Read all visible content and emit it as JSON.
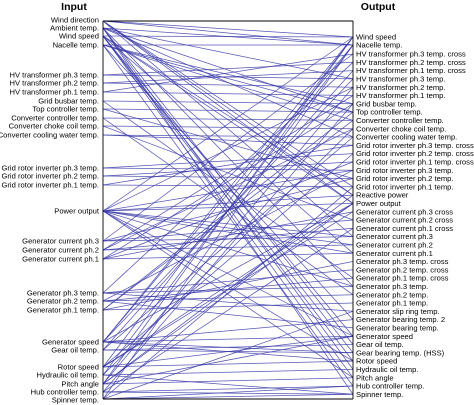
{
  "headers": {
    "input": "Input",
    "output": "Output"
  },
  "colors": {
    "line": "#3a3aa8",
    "axis": "#000000",
    "text": "#000000"
  },
  "inputs": [
    "Wind direction",
    "Ambient temp.",
    "Wind speed",
    "Nacelle temp.",
    "HV transformer ph.3 temp.",
    "HV transformer ph.2 temp.",
    "HV transformer ph.1 temp.",
    "Grid busbar temp.",
    "Top controller temp.",
    "Converter controller temp.",
    "Converter choke coil temp.",
    "Converter cooling water temp.",
    "Grid rotor inverter ph.3 temp.",
    "Grid rotor inverter ph.2 temp.",
    "Grid rotor inverter ph.1 temp.",
    "Power output",
    "Generator current ph.3",
    "Generator current ph.2",
    "Generator current ph.1",
    "Generator ph.3 temp.",
    "Generator ph.2 temp.",
    "Generator ph.1 temp.",
    "Generator speed",
    "Gear oil temp.",
    "Rotor speed",
    "Hydraulic oil temp.",
    "Pitch angle",
    "Hub controller temp.",
    "Spinner temp."
  ],
  "outputs": [
    "Wind speed",
    "Nacelle temp.",
    "HV transformer ph.3 temp. cross",
    "HV transformer ph.2 temp. cross",
    "HV transformer ph.1 temp. cross",
    "HV transformer ph.3 temp.",
    "HV transformer ph.2 temp.",
    "HV transformer ph.1 temp.",
    "Grid busbar temp.",
    "Top controller temp.",
    "Converter controller temp.",
    "Converter choke coil temp.",
    "Converter cooling water temp.",
    "Grid rotor inverter ph.3 temp. cross",
    "Grid rotor inverter ph.2 temp. cross",
    "Grid rotor inverter ph.1 temp. cross",
    "Grid rotor inverter ph.3 temp.",
    "Grid rotor inverter ph.2 temp.",
    "Grid rotor inverter ph.1 temp.",
    "Reactive power",
    "Power output",
    "Generator current ph.3 cross",
    "Generator current ph.2 cross",
    "Generator current ph.1 cross",
    "Generator current ph.3",
    "Generator current ph.2",
    "Generator current ph.1",
    "Generator ph.3 temp. cross",
    "Generator ph.2 temp. cross",
    "Generator ph.1 temp. cross",
    "Generator ph.3 temp.",
    "Generator ph.2 temp.",
    "Generator ph.1 temp.",
    "Generator slip ring temp.",
    "Generator bearing temp. 2",
    "Generator bearing temp.",
    "Generator speed",
    "Gear oil temp.",
    "Gear bearing temp. (HSS)",
    "Rotor speed",
    "Hydraulic oil temp.",
    "Pitch angle",
    "Hub controller temp.",
    "Spinner temp."
  ],
  "links": [
    [
      "Wind direction",
      "Wind speed"
    ],
    [
      "Wind direction",
      "Nacelle temp."
    ],
    [
      "Wind direction",
      "Reactive power"
    ],
    [
      "Wind direction",
      "Power output"
    ],
    [
      "Wind direction",
      "Grid rotor inverter ph.1 temp."
    ],
    [
      "Wind direction",
      "Generator current ph.3"
    ],
    [
      "Ambient temp.",
      "Nacelle temp."
    ],
    [
      "Ambient temp.",
      "HV transformer ph.3 temp."
    ],
    [
      "Ambient temp.",
      "Top controller temp."
    ],
    [
      "Ambient temp.",
      "Converter cooling water temp."
    ],
    [
      "Ambient temp.",
      "Generator ph.3 temp."
    ],
    [
      "Ambient temp.",
      "Gear oil temp."
    ],
    [
      "Ambient temp.",
      "Hydraulic oil temp."
    ],
    [
      "Ambient temp.",
      "Spinner temp."
    ],
    [
      "Wind speed",
      "Wind speed"
    ],
    [
      "Wind speed",
      "Power output"
    ],
    [
      "Wind speed",
      "Reactive power"
    ],
    [
      "Wind speed",
      "Generator speed"
    ],
    [
      "Wind speed",
      "Rotor speed"
    ],
    [
      "Wind speed",
      "Pitch angle"
    ],
    [
      "Wind speed",
      "Generator current ph.1"
    ],
    [
      "Wind speed",
      "Gear bearing temp. (HSS)"
    ],
    [
      "Nacelle temp.",
      "Nacelle temp."
    ],
    [
      "Nacelle temp.",
      "Grid busbar temp."
    ],
    [
      "Nacelle temp.",
      "Top controller temp."
    ],
    [
      "Nacelle temp.",
      "Converter controller temp."
    ],
    [
      "Nacelle temp.",
      "Hub controller temp."
    ],
    [
      "Nacelle temp.",
      "Generator bearing temp. 2"
    ],
    [
      "HV transformer ph.3 temp.",
      "HV transformer ph.3 temp."
    ],
    [
      "HV transformer ph.3 temp.",
      "HV transformer ph.2 temp. cross"
    ],
    [
      "HV transformer ph.2 temp.",
      "HV transformer ph.2 temp."
    ],
    [
      "HV transformer ph.2 temp.",
      "HV transformer ph.1 temp. cross"
    ],
    [
      "HV transformer ph.1 temp.",
      "HV transformer ph.1 temp."
    ],
    [
      "HV transformer ph.1 temp.",
      "HV transformer ph.3 temp. cross"
    ],
    [
      "Grid busbar temp.",
      "Grid busbar temp."
    ],
    [
      "Grid busbar temp.",
      "Generator ph.1 temp. cross"
    ],
    [
      "Top controller temp.",
      "Top controller temp."
    ],
    [
      "Top controller temp.",
      "Grid rotor inverter ph.2 temp."
    ],
    [
      "Converter controller temp.",
      "Converter controller temp."
    ],
    [
      "Converter controller temp.",
      "Generator ph.2 temp."
    ],
    [
      "Converter choke coil temp.",
      "Converter choke coil temp."
    ],
    [
      "Converter choke coil temp.",
      "Generator current ph.2 cross"
    ],
    [
      "Converter cooling water temp.",
      "Converter cooling water temp."
    ],
    [
      "Converter cooling water temp.",
      "Grid rotor inverter ph.3 temp. cross"
    ],
    [
      "Grid rotor inverter ph.3 temp.",
      "Grid rotor inverter ph.3 temp."
    ],
    [
      "Grid rotor inverter ph.3 temp.",
      "Grid rotor inverter ph.2 temp. cross"
    ],
    [
      "Grid rotor inverter ph.2 temp.",
      "Grid rotor inverter ph.2 temp."
    ],
    [
      "Grid rotor inverter ph.2 temp.",
      "Grid rotor inverter ph.1 temp. cross"
    ],
    [
      "Grid rotor inverter ph.1 temp.",
      "Grid rotor inverter ph.1 temp."
    ],
    [
      "Grid rotor inverter ph.1 temp.",
      "Grid rotor inverter ph.3 temp. cross"
    ],
    [
      "Power output",
      "Wind speed"
    ],
    [
      "Power output",
      "Power output"
    ],
    [
      "Power output",
      "Reactive power"
    ],
    [
      "Power output",
      "Generator current ph.3"
    ],
    [
      "Power output",
      "Generator current ph.2"
    ],
    [
      "Power output",
      "Generator current ph.1"
    ],
    [
      "Power output",
      "Generator speed"
    ],
    [
      "Power output",
      "Rotor speed"
    ],
    [
      "Power output",
      "Pitch angle"
    ],
    [
      "Power output",
      "HV transformer ph.2 temp."
    ],
    [
      "Power output",
      "Grid rotor inverter ph.3 temp."
    ],
    [
      "Power output",
      "Generator ph.3 temp."
    ],
    [
      "Generator current ph.3",
      "Generator current ph.3"
    ],
    [
      "Generator current ph.3",
      "Generator current ph.2 cross"
    ],
    [
      "Generator current ph.3",
      "Grid rotor inverter ph.2 temp."
    ],
    [
      "Generator current ph.3",
      "HV transformer ph.3 temp. cross"
    ],
    [
      "Generator current ph.2",
      "Generator current ph.2"
    ],
    [
      "Generator current ph.2",
      "Generator current ph.1 cross"
    ],
    [
      "Generator current ph.2",
      "Converter choke coil temp."
    ],
    [
      "Generator current ph.2",
      "HV transformer ph.1 temp."
    ],
    [
      "Generator current ph.1",
      "Generator current ph.1"
    ],
    [
      "Generator current ph.1",
      "Generator current ph.3 cross"
    ],
    [
      "Generator current ph.1",
      "Grid rotor inverter ph.1 temp. cross"
    ],
    [
      "Generator current ph.1",
      "Grid busbar temp."
    ],
    [
      "Generator ph.3 temp.",
      "Generator ph.3 temp."
    ],
    [
      "Generator ph.3 temp.",
      "Generator ph.2 temp. cross"
    ],
    [
      "Generator ph.3 temp.",
      "Generator slip ring temp."
    ],
    [
      "Generator ph.3 temp.",
      "HV transformer ph.2 temp. cross"
    ],
    [
      "Generator ph.2 temp.",
      "Generator ph.2 temp."
    ],
    [
      "Generator ph.2 temp.",
      "Generator ph.1 temp. cross"
    ],
    [
      "Generator ph.2 temp.",
      "Generator bearing temp."
    ],
    [
      "Generator ph.2 temp.",
      "Grid rotor inverter ph.3 temp."
    ],
    [
      "Generator ph.1 temp.",
      "Generator ph.1 temp."
    ],
    [
      "Generator ph.1 temp.",
      "Generator ph.3 temp. cross"
    ],
    [
      "Generator ph.1 temp.",
      "Top controller temp."
    ],
    [
      "Generator ph.1 temp.",
      "Converter controller temp."
    ],
    [
      "Generator speed",
      "Generator speed"
    ],
    [
      "Generator speed",
      "Rotor speed"
    ],
    [
      "Generator speed",
      "Wind speed"
    ],
    [
      "Generator speed",
      "Power output"
    ],
    [
      "Generator speed",
      "Gear bearing temp. (HSS)"
    ],
    [
      "Generator speed",
      "Generator bearing temp. 2"
    ],
    [
      "Generator speed",
      "HV transformer ph.3 temp."
    ],
    [
      "Generator speed",
      "Nacelle temp."
    ],
    [
      "Gear oil temp.",
      "Gear oil temp."
    ],
    [
      "Gear oil temp.",
      "Gear bearing temp. (HSS)"
    ],
    [
      "Gear oil temp.",
      "Converter cooling water temp."
    ],
    [
      "Gear oil temp.",
      "HV transformer ph.1 temp. cross"
    ],
    [
      "Rotor speed",
      "Rotor speed"
    ],
    [
      "Rotor speed",
      "Generator speed"
    ],
    [
      "Rotor speed",
      "Power output"
    ],
    [
      "Rotor speed",
      "Wind speed"
    ],
    [
      "Rotor speed",
      "Grid rotor inverter ph.2 temp. cross"
    ],
    [
      "Rotor speed",
      "Generator current ph.3 cross"
    ],
    [
      "Hydraulic oil temp.",
      "Hydraulic oil temp."
    ],
    [
      "Hydraulic oil temp.",
      "Nacelle temp."
    ],
    [
      "Hydraulic oil temp.",
      "Spinner temp."
    ],
    [
      "Hydraulic oil temp.",
      "Converter choke coil temp."
    ],
    [
      "Pitch angle",
      "Pitch angle"
    ],
    [
      "Pitch angle",
      "Power output"
    ],
    [
      "Pitch angle",
      "Wind speed"
    ],
    [
      "Pitch angle",
      "Generator speed"
    ],
    [
      "Pitch angle",
      "HV transformer ph.2 temp."
    ],
    [
      "Pitch angle",
      "Reactive power"
    ],
    [
      "Hub controller temp.",
      "Hub controller temp."
    ],
    [
      "Hub controller temp.",
      "Spinner temp."
    ],
    [
      "Hub controller temp.",
      "Grid busbar temp."
    ],
    [
      "Hub controller temp.",
      "Generator current ph.1 cross"
    ],
    [
      "Spinner temp.",
      "Spinner temp."
    ],
    [
      "Spinner temp.",
      "Hub controller temp."
    ],
    [
      "Spinner temp.",
      "Nacelle temp."
    ],
    [
      "Spinner temp.",
      "Grid rotor inverter ph.1 temp."
    ],
    [
      "Spinner temp.",
      "Generator slip ring temp."
    ]
  ]
}
